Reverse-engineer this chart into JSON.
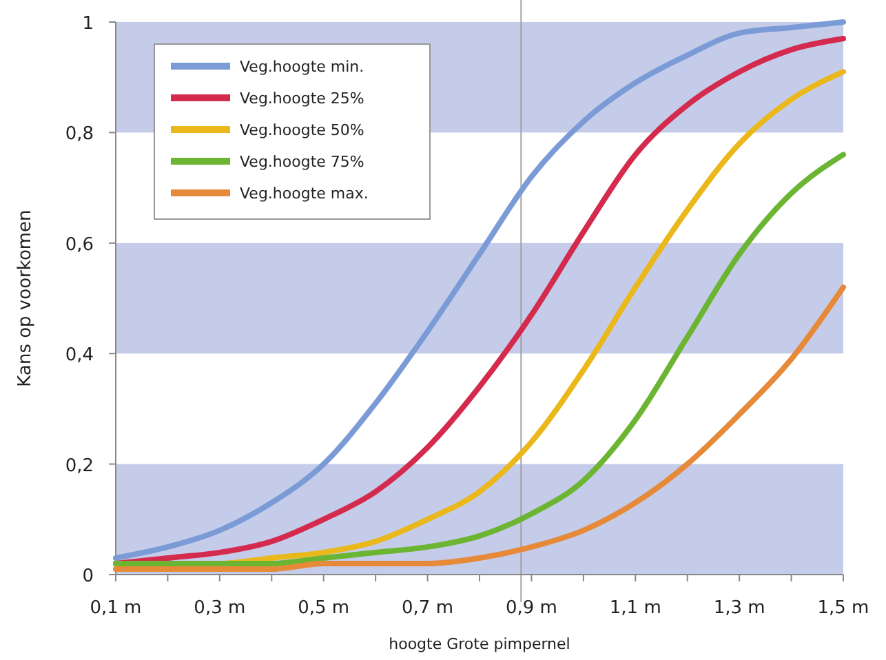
{
  "chart_data": {
    "type": "line",
    "xlabel": "hoogte Grote pimpernel",
    "ylabel": "Kans op voorkomen",
    "x": [
      0.1,
      0.2,
      0.3,
      0.4,
      0.5,
      0.6,
      0.7,
      0.8,
      0.9,
      1.0,
      1.1,
      1.2,
      1.3,
      1.4,
      1.5
    ],
    "series": [
      {
        "name": "Veg.hoogte min.",
        "color": "#7b9bd6",
        "values": [
          0.03,
          0.05,
          0.08,
          0.13,
          0.2,
          0.31,
          0.44,
          0.58,
          0.72,
          0.82,
          0.89,
          0.94,
          0.98,
          0.99,
          1.0
        ]
      },
      {
        "name": "Veg.hoogte 25%",
        "color": "#d42a4e",
        "values": [
          0.02,
          0.03,
          0.04,
          0.06,
          0.1,
          0.15,
          0.23,
          0.34,
          0.47,
          0.62,
          0.76,
          0.85,
          0.91,
          0.95,
          0.97
        ]
      },
      {
        "name": "Veg.hoogte 50%",
        "color": "#eab81a",
        "values": [
          0.02,
          0.02,
          0.02,
          0.03,
          0.04,
          0.06,
          0.1,
          0.15,
          0.24,
          0.37,
          0.52,
          0.66,
          0.78,
          0.86,
          0.91
        ]
      },
      {
        "name": "Veg.hoogte 75%",
        "color": "#6cb532",
        "values": [
          0.02,
          0.02,
          0.02,
          0.02,
          0.03,
          0.04,
          0.05,
          0.07,
          0.11,
          0.17,
          0.28,
          0.43,
          0.58,
          0.69,
          0.76
        ]
      },
      {
        "name": "Veg.hoogte max.",
        "color": "#e68a3a",
        "values": [
          0.01,
          0.01,
          0.01,
          0.01,
          0.02,
          0.02,
          0.02,
          0.03,
          0.05,
          0.08,
          0.13,
          0.2,
          0.29,
          0.39,
          0.52
        ]
      }
    ],
    "xlim": [
      0.1,
      1.5
    ],
    "xticks": [
      {
        "value": 0.1,
        "label": "0,1 m"
      },
      {
        "value": 0.2,
        "label": null
      },
      {
        "value": 0.3,
        "label": "0,3 m"
      },
      {
        "value": 0.4,
        "label": null
      },
      {
        "value": 0.5,
        "label": "0,5 m"
      },
      {
        "value": 0.6,
        "label": null
      },
      {
        "value": 0.7,
        "label": "0,7 m"
      },
      {
        "value": 0.8,
        "label": null
      },
      {
        "value": 0.9,
        "label": "0,9 m"
      },
      {
        "value": 1.0,
        "label": null
      },
      {
        "value": 1.1,
        "label": "1,1 m"
      },
      {
        "value": 1.2,
        "label": null
      },
      {
        "value": 1.3,
        "label": "1,3 m"
      },
      {
        "value": 1.4,
        "label": null
      },
      {
        "value": 1.5,
        "label": "1,5 m"
      }
    ],
    "ylim": [
      0,
      1
    ],
    "yticks": [
      0,
      {
        "value": 0.2,
        "label": "0,2"
      },
      {
        "value": 0.4,
        "label": "0,4"
      },
      {
        "value": 0.6,
        "label": "0,6"
      },
      {
        "value": 0.8,
        "label": "0,8"
      },
      1
    ],
    "bands": [
      {
        "axis": "y",
        "from": 0,
        "to": 0.2,
        "color": "#c5cce9"
      },
      {
        "axis": "y",
        "from": 0.4,
        "to": 0.6,
        "color": "#c5cce9"
      },
      {
        "axis": "y",
        "from": 0.8,
        "to": 1,
        "color": "#c5cce9"
      }
    ],
    "ref_lines": [
      {
        "axis": "x",
        "value": 0.88,
        "color": "#a0a0a0"
      }
    ],
    "legend": "top left",
    "grid": false,
    "line_style": "solid"
  }
}
